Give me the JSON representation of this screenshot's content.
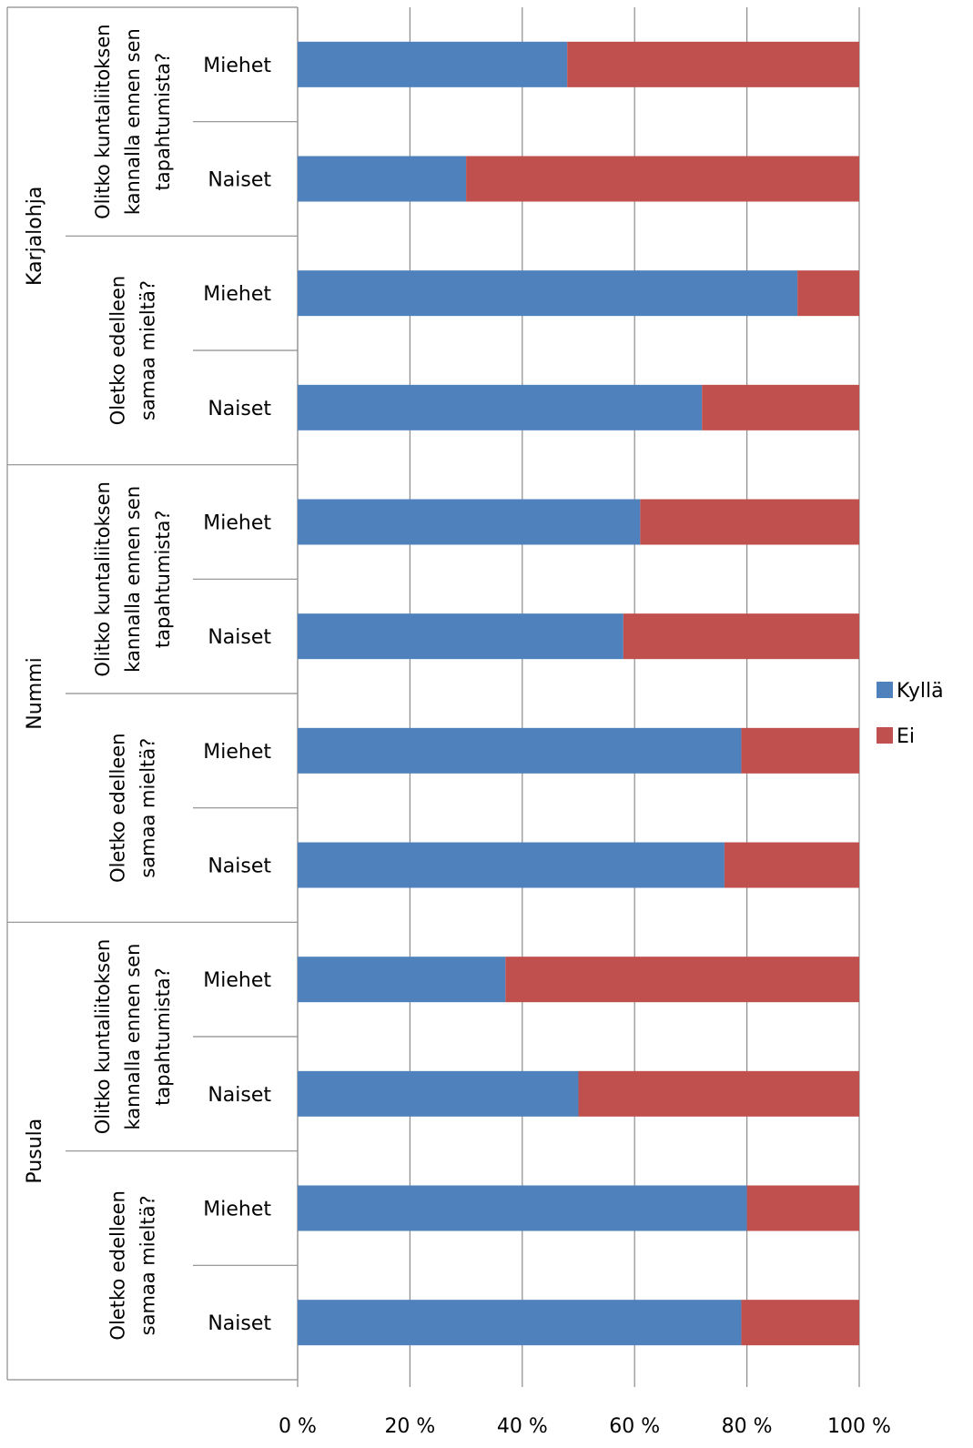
{
  "chart_data": {
    "type": "bar",
    "orientation": "horizontal",
    "stacked": "percent",
    "title": "",
    "xlabel": "",
    "ylabel": "",
    "xlim": [
      0,
      100
    ],
    "x_ticks": [
      "0 %",
      "20 %",
      "40 %",
      "60 %",
      "80 %",
      "100 %"
    ],
    "grid": "vertical",
    "legend_position": "right",
    "municipalities": [
      "Karjalohja",
      "Nummi",
      "Pusula"
    ],
    "questions": [
      [
        "Olitko kuntaliitoksen",
        "kannalla ennen sen",
        "tapahtumista?"
      ],
      [
        "Oletko edelleen",
        "samaa mieltä?"
      ]
    ],
    "genders": [
      "Miehet",
      "Naiset"
    ],
    "series": [
      {
        "name": "Kyllä",
        "color": "#4F81BD",
        "values": [
          48,
          30,
          89,
          72,
          61,
          58,
          79,
          76,
          37,
          50,
          80,
          79
        ]
      },
      {
        "name": "Ei",
        "color": "#C0504D",
        "values": [
          52,
          70,
          11,
          28,
          39,
          42,
          21,
          24,
          63,
          50,
          20,
          21
        ]
      }
    ]
  }
}
